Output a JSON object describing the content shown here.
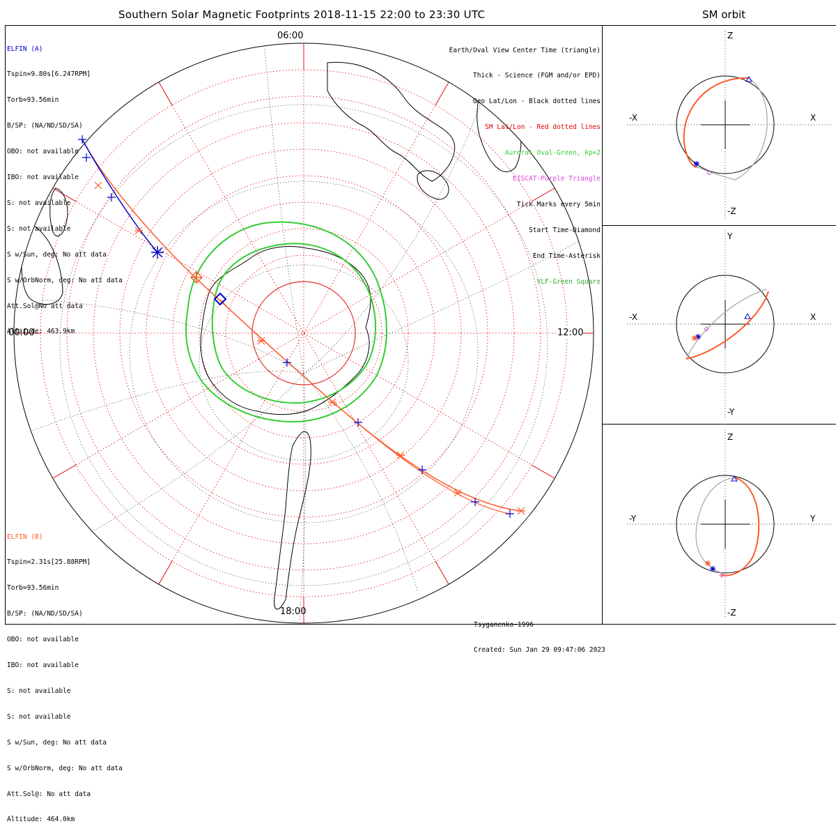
{
  "title": "Southern Solar Magnetic Footprints 2018-11-15 22:00 to 23:30 UTC",
  "side_title": "SM orbit",
  "elfin_a": {
    "name": "ELFIN (A)",
    "color": "#0000cc",
    "lines": [
      "Tspin=9.80s[6.247RPM]",
      "Torb=93.56min",
      "B/SP: (NA/ND/SD/SA)",
      "OBO: not available",
      "IBO: not available",
      "S: not available",
      "S: not available",
      "S w/Sun, deg: No att data",
      "S w/OrbNorm, deg: No att data",
      "Att.Sol@No att data",
      "Altitude: 463.9km"
    ]
  },
  "elfin_b": {
    "name": "ELFIN (B)",
    "color": "#ff5a2a",
    "lines": [
      "Tspin=2.31s[25.88RPM]",
      "Torb=93.56min",
      "B/SP: (NA/ND/SD/SA)",
      "OBO: not available",
      "IBO: not available",
      "S: not available",
      "S: not available",
      "S w/Sun, deg: No att data",
      "S w/OrbNorm, deg: No att data",
      "Att.Sol@: No att data",
      "Altitude: 464.0km"
    ]
  },
  "legend": [
    {
      "text": "Earth/Oval View Center Time (triangle)",
      "color": "#000000"
    },
    {
      "text": "Thick - Science (FGM and/or EPD)",
      "color": "#000000"
    },
    {
      "text": "Geo Lat/Lon - Black dotted lines",
      "color": "#000000"
    },
    {
      "text": "SM Lat/Lon - Red dotted lines",
      "color": "#e00000"
    },
    {
      "text": "Auroral Oval-Green, kp=2",
      "color": "#33cc33"
    },
    {
      "text": "EISCAT-Purple Triangle",
      "color": "#dd44dd"
    },
    {
      "text": "Tick Marks every 5min",
      "color": "#000000"
    },
    {
      "text": "Start Time-Diamond",
      "color": "#000000"
    },
    {
      "text": "End Time-Asterisk",
      "color": "#000000"
    },
    {
      "text": "VLF-Green Square",
      "color": "#33aa33"
    }
  ],
  "mlt_labels": {
    "top": "06:00",
    "left": "00:00",
    "right": "12:00",
    "bottom": "18:00"
  },
  "credit": [
    "Tsyganenko-1996",
    "Created: Sun Jan 29 09:47:06 2023"
  ],
  "orbit_panels": [
    {
      "name": "xz",
      "top": "Z",
      "bottom": "-Z",
      "left": "-X",
      "right": "X"
    },
    {
      "name": "xy",
      "top": "Y",
      "bottom": "-Y",
      "left": "-X",
      "right": "X"
    },
    {
      "name": "yz",
      "top": "Z",
      "bottom": "-Z",
      "left": "-Y",
      "right": "Y"
    }
  ],
  "colors": {
    "sm_grid": "#e00000",
    "oval": "#33cc33",
    "track_b": "#ff5a2a",
    "track_a": "#0000cc",
    "geo": "#000000",
    "orbit_gray": "#aaaaaa"
  }
}
